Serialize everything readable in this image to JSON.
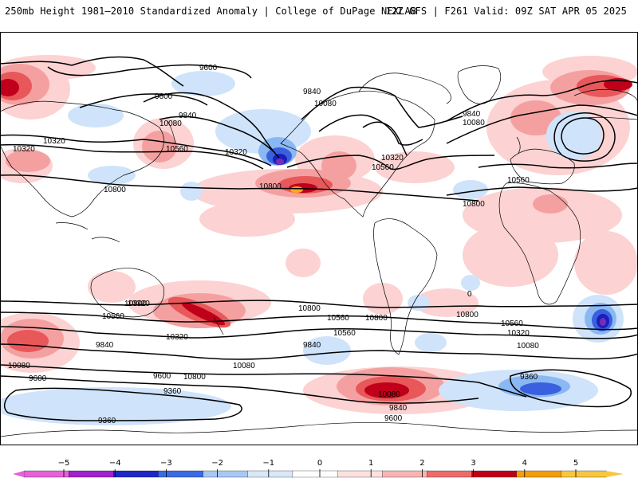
{
  "header": {
    "title": "250mb Height 1981–2010 Standardized Anomaly | College of DuPage NEXLAB",
    "run_info": "12Z GFS | F261 Valid: 09Z SAT APR 05 2025"
  },
  "map": {
    "projection": "global cylindrical",
    "contour_labels": [
      "9600",
      "9600",
      "9840",
      "9840",
      "10080",
      "10080",
      "10320",
      "10320",
      "10560",
      "10560",
      "10560",
      "10080",
      "10320",
      "10800",
      "10320",
      "10800",
      "10800",
      "10560",
      "10800",
      "10800",
      "10560",
      "10320",
      "10080",
      "9840",
      "9600",
      "9360",
      "9360",
      "9840",
      "10080",
      "9600",
      "10800",
      "10800",
      "10560",
      "10320",
      "10080",
      "10800",
      "10560",
      "10320",
      "10080",
      "9360",
      "9840",
      "9600",
      "9840",
      "10080",
      "9600",
      "0"
    ],
    "anomaly_colors": {
      "neg_1": "#cfe3fb",
      "neg_2": "#8ab8f2",
      "neg_3": "#3a60e0",
      "neg_4": "#1720b8",
      "neg_5": "#7a2ab8",
      "pos_1": "#fcd2d2",
      "pos_2": "#f5a0a0",
      "pos_3": "#e8585a",
      "pos_4": "#c0001a",
      "pos_5": "#f8a818"
    }
  },
  "legend": {
    "ticks": [
      "−5",
      "−4",
      "−3",
      "−2",
      "−1",
      "0",
      "1",
      "2",
      "3",
      "4",
      "5"
    ],
    "colors": [
      "#e85fd8",
      "#a020d0",
      "#1e28c8",
      "#3a6ae6",
      "#a8c8f4",
      "#d8e8fb",
      "#ffffff",
      "#fde0e0",
      "#f8b4b4",
      "#ef6a6a",
      "#c00018",
      "#f59e0b",
      "#f8c640"
    ]
  }
}
